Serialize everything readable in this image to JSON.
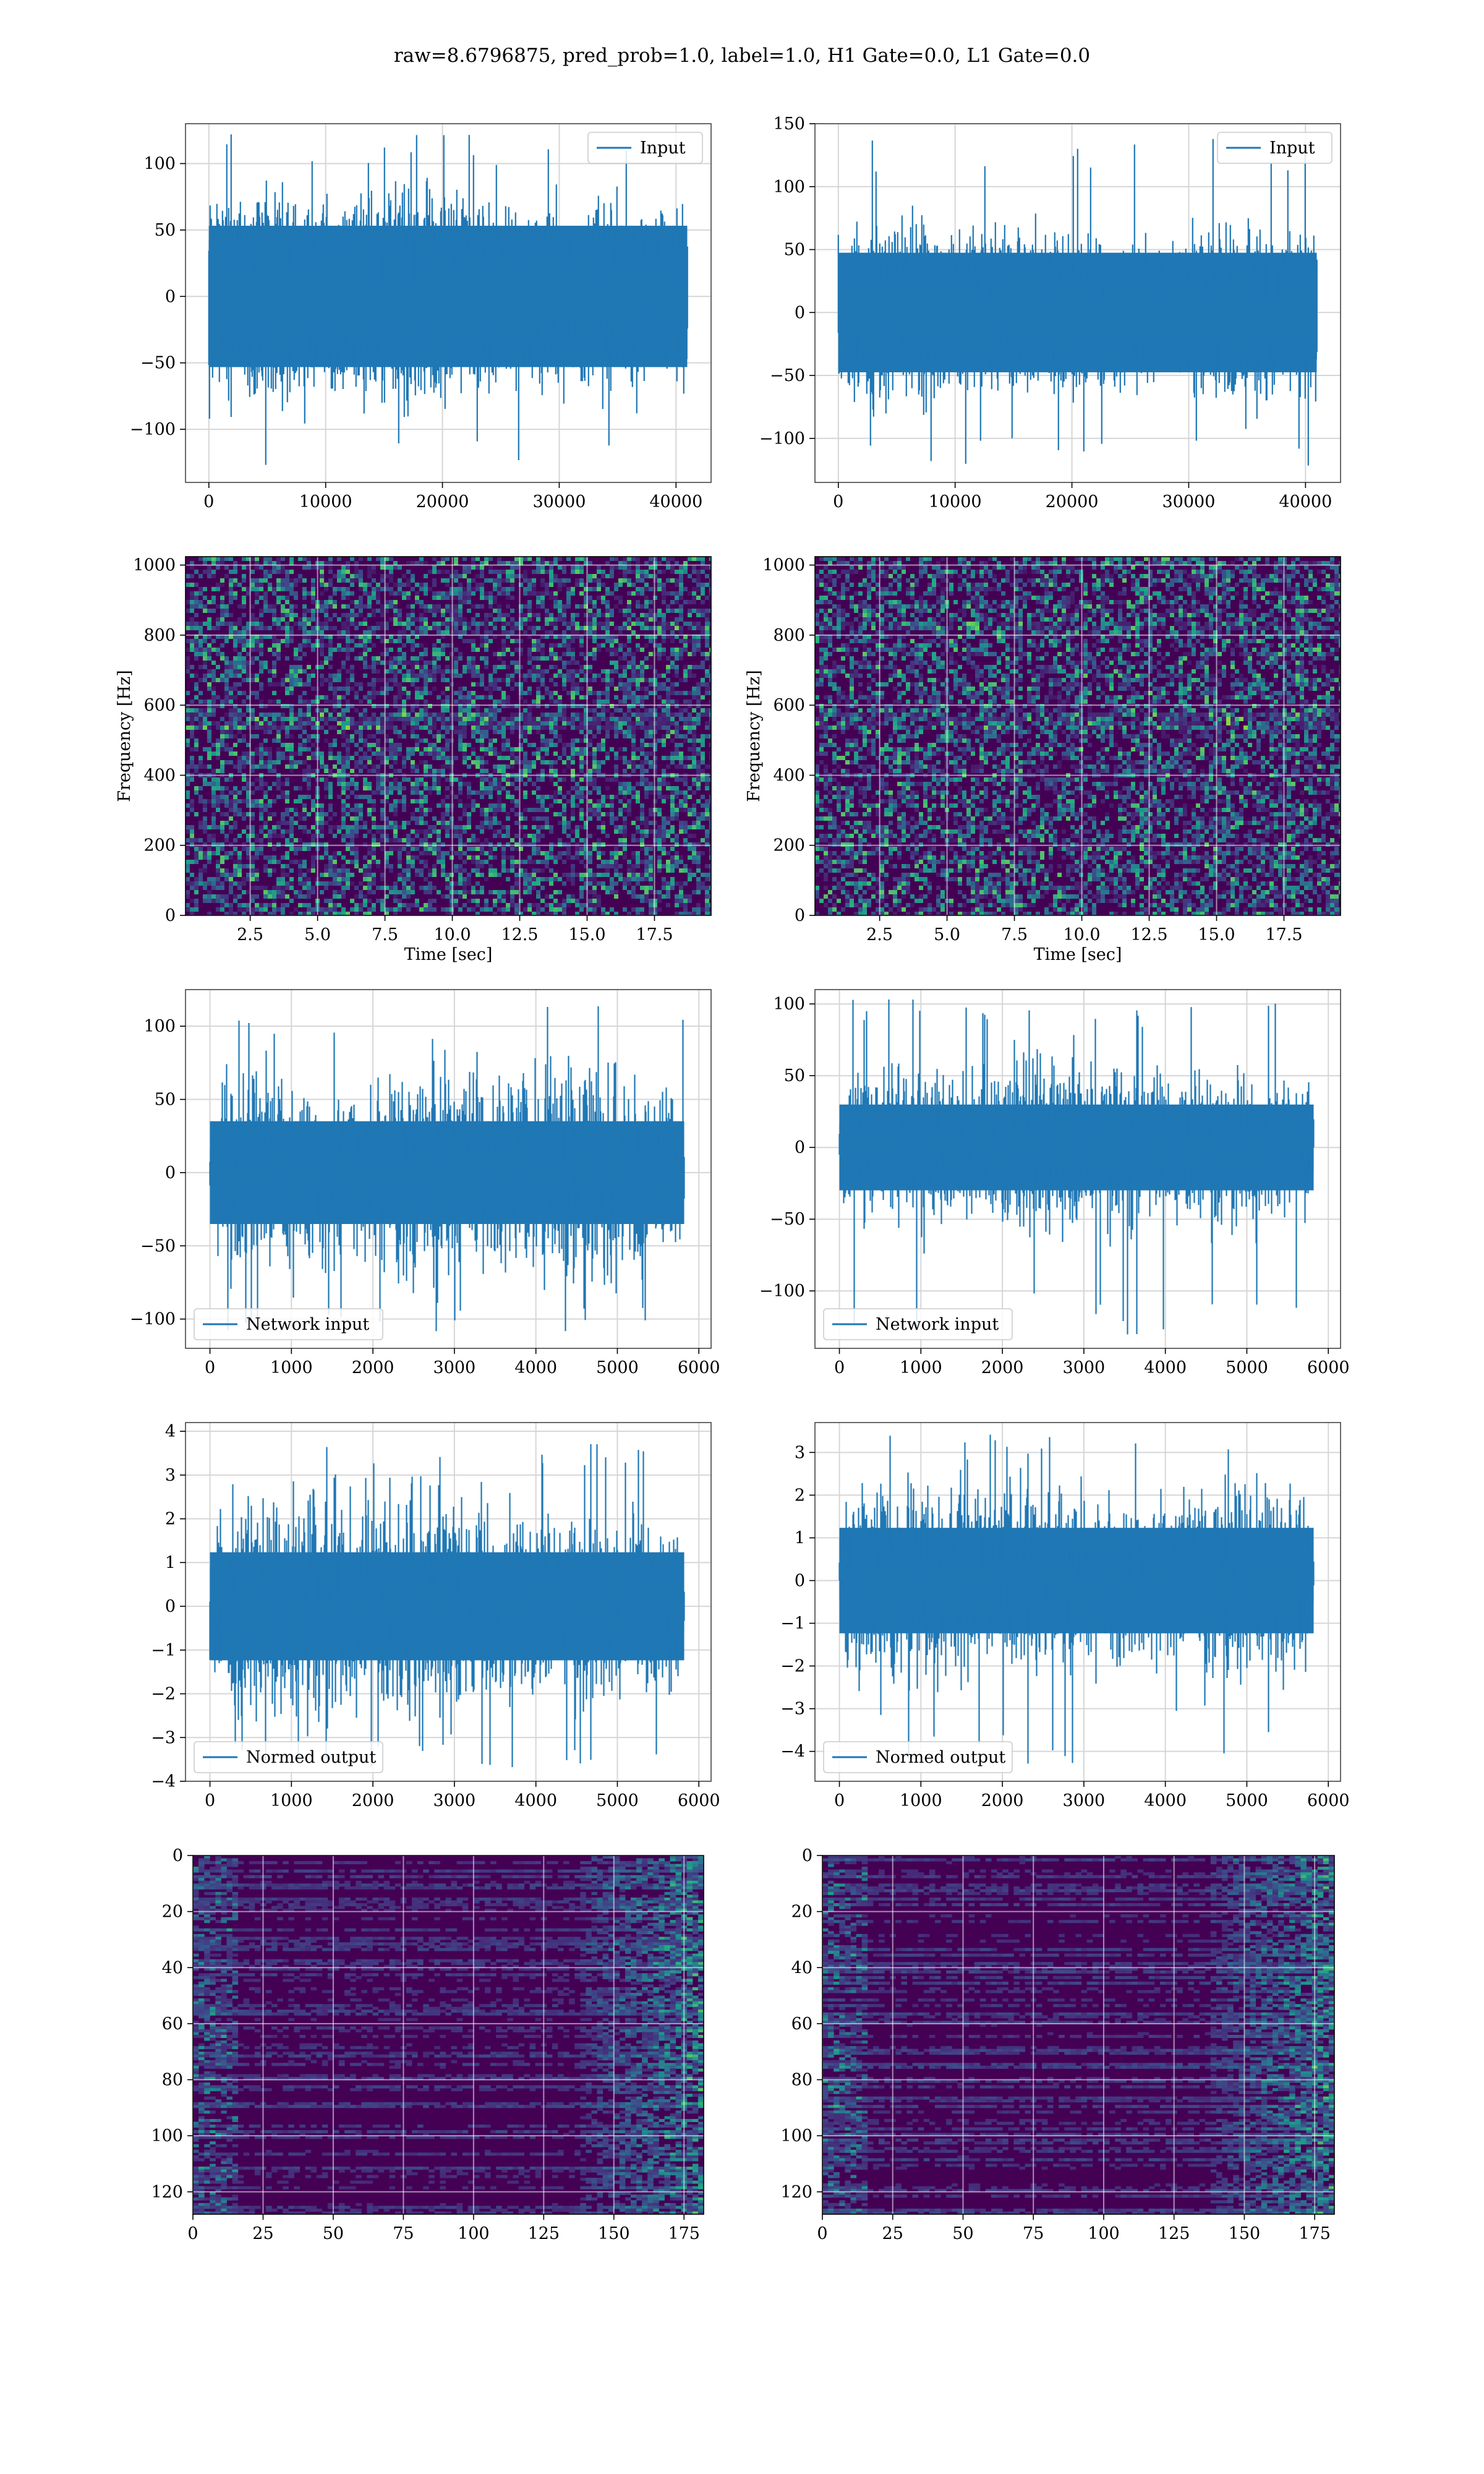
{
  "title": "raw=8.6796875, pred_prob=1.0, label=1.0, H1 Gate=0.0, L1 Gate=0.0",
  "colors": {
    "line": "#1f77b4",
    "grid": "#d6d6d6",
    "viridis_bg": "#440154"
  },
  "chart_data": [
    {
      "id": "input-h1",
      "type": "line",
      "row": 0,
      "col": 0,
      "legend": "Input",
      "legend_loc": "upper right",
      "xlim": [
        -2000,
        43000
      ],
      "ylim": [
        -140,
        130
      ],
      "xticks": [
        0,
        10000,
        20000,
        30000,
        40000
      ],
      "yticks": [
        -100,
        -50,
        0,
        50,
        100
      ],
      "signal": {
        "n": 40960,
        "x_end": 40960,
        "std": 28,
        "peak_max": 122,
        "peak_min": -134
      },
      "grid": true
    },
    {
      "id": "input-l1",
      "type": "line",
      "row": 0,
      "col": 1,
      "legend": "Input",
      "legend_loc": "upper right",
      "xlim": [
        -2000,
        43000
      ],
      "ylim": [
        -135,
        150
      ],
      "xticks": [
        0,
        10000,
        20000,
        30000,
        40000
      ],
      "yticks": [
        -100,
        -50,
        0,
        50,
        100,
        150
      ],
      "signal": {
        "n": 40960,
        "x_end": 40960,
        "std": 25,
        "peak_max": 138,
        "peak_min": -124
      },
      "grid": true
    },
    {
      "id": "spectrogram-h1",
      "type": "heatmap",
      "row": 1,
      "col": 0,
      "xlabel": "Time [sec]",
      "ylabel": "Frequency [Hz]",
      "xlim": [
        0.1,
        19.6
      ],
      "ylim": [
        0,
        1024
      ],
      "xticks": [
        2.5,
        5.0,
        7.5,
        10.0,
        12.5,
        15.0,
        17.5
      ],
      "yticks": [
        0,
        200,
        400,
        600,
        800,
        1000
      ],
      "colormap": "viridis",
      "grid": true
    },
    {
      "id": "spectrogram-l1",
      "type": "heatmap",
      "row": 1,
      "col": 1,
      "xlabel": "Time [sec]",
      "ylabel": "Frequency [Hz]",
      "xlim": [
        0.1,
        19.6
      ],
      "ylim": [
        0,
        1024
      ],
      "xticks": [
        2.5,
        5.0,
        7.5,
        10.0,
        12.5,
        15.0,
        17.5
      ],
      "yticks": [
        0,
        200,
        400,
        600,
        800,
        1000
      ],
      "colormap": "viridis",
      "grid": true
    },
    {
      "id": "network-input-h1",
      "type": "line",
      "row": 2,
      "col": 0,
      "legend": "Network input",
      "legend_loc": "lower left",
      "xlim": [
        -300,
        6150
      ],
      "ylim": [
        -120,
        125
      ],
      "xticks": [
        0,
        1000,
        2000,
        3000,
        4000,
        5000,
        6000
      ],
      "yticks": [
        -100,
        -50,
        0,
        50,
        100
      ],
      "signal": {
        "n": 5820,
        "x_end": 5820,
        "std": 27,
        "peak_max": 118,
        "peak_min": -110
      },
      "grid": true
    },
    {
      "id": "network-input-l1",
      "type": "line",
      "row": 2,
      "col": 1,
      "legend": "Network input",
      "legend_loc": "lower left",
      "xlim": [
        -300,
        6150
      ],
      "ylim": [
        -140,
        110
      ],
      "xticks": [
        0,
        1000,
        2000,
        3000,
        4000,
        5000,
        6000
      ],
      "yticks": [
        -100,
        -50,
        0,
        50,
        100
      ],
      "signal": {
        "n": 5820,
        "x_end": 5820,
        "std": 23,
        "peak_max": 105,
        "peak_min": -132
      },
      "grid": true
    },
    {
      "id": "normed-output-h1",
      "type": "line",
      "row": 3,
      "col": 0,
      "legend": "Normed output",
      "legend_loc": "lower left",
      "xlim": [
        -300,
        6150
      ],
      "ylim": [
        -4.0,
        4.2
      ],
      "xticks": [
        0,
        1000,
        2000,
        3000,
        4000,
        5000,
        6000
      ],
      "yticks": [
        -4,
        -3,
        -2,
        -1,
        0,
        1,
        2,
        3,
        4
      ],
      "signal": {
        "n": 5820,
        "x_end": 5820,
        "std": 0.95,
        "peak_max": 3.8,
        "peak_min": -3.7
      },
      "grid": true
    },
    {
      "id": "normed-output-l1",
      "type": "line",
      "row": 3,
      "col": 1,
      "legend": "Normed output",
      "legend_loc": "lower left",
      "xlim": [
        -300,
        6150
      ],
      "ylim": [
        -4.7,
        3.7
      ],
      "xticks": [
        0,
        1000,
        2000,
        3000,
        4000,
        5000,
        6000
      ],
      "yticks": [
        -4,
        -3,
        -2,
        -1,
        0,
        1,
        2,
        3
      ],
      "signal": {
        "n": 5820,
        "x_end": 5820,
        "std": 0.95,
        "peak_max": 3.5,
        "peak_min": -4.3
      },
      "grid": true
    },
    {
      "id": "feature-map-h1",
      "type": "heatmap",
      "row": 4,
      "col": 0,
      "xlim": [
        0,
        182
      ],
      "ylim": [
        128,
        0
      ],
      "xticks": [
        0,
        25,
        50,
        75,
        100,
        125,
        150,
        175
      ],
      "yticks": [
        0,
        20,
        40,
        60,
        80,
        100,
        120
      ],
      "colormap": "viridis",
      "grid": true
    },
    {
      "id": "feature-map-l1",
      "type": "heatmap",
      "row": 4,
      "col": 1,
      "xlim": [
        0,
        182
      ],
      "ylim": [
        128,
        0
      ],
      "xticks": [
        0,
        25,
        50,
        75,
        100,
        125,
        150,
        175
      ],
      "yticks": [
        0,
        20,
        40,
        60,
        80,
        100,
        120
      ],
      "colormap": "viridis",
      "grid": true
    }
  ]
}
